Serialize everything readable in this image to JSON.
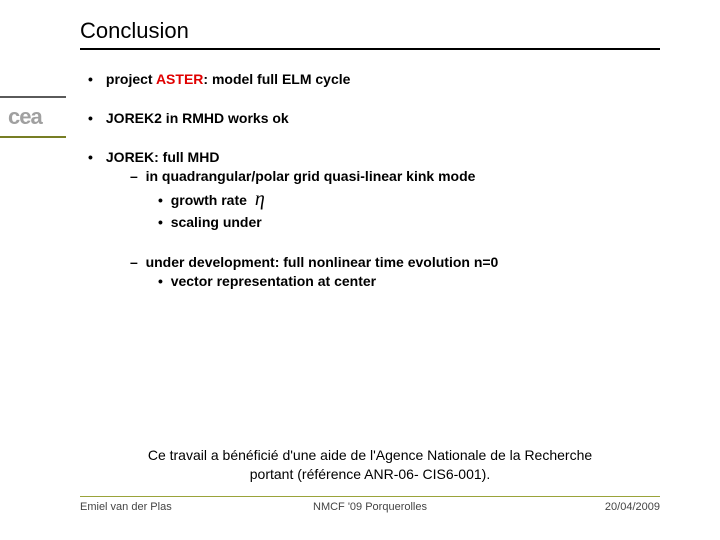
{
  "title": "Conclusion",
  "bullets": {
    "b1_pre": "project ",
    "b1_aster": "ASTER",
    "b1_post": ": model full ELM cycle",
    "b2": "JOREK2 in RMHD works ok",
    "b3": "JOREK: full MHD",
    "b3_1": "in quadrangular/polar grid quasi-linear kink mode",
    "b3_1_1": "growth rate",
    "b3_1_2": "scaling under",
    "b3_eta": "η",
    "b3_2": "under development: full nonlinear time evolution n=0",
    "b3_2_1": "vector representation at center"
  },
  "acknowledgement_l1": "Ce travail a bénéficié d'une aide de l'Agence Nationale de la Recherche",
  "acknowledgement_l2": "portant (référence ANR-06- CIS6-001).",
  "footer": {
    "author": "Emiel van der Plas",
    "conference": "NMCF '09 Porquerolles",
    "date": "20/04/2009"
  },
  "colors": {
    "title_underline": "#000000",
    "accent_green": "#9aa33a",
    "aster_red": "#e00000",
    "logo_gray": "#a0a0a0",
    "text": "#000000",
    "background": "#ffffff"
  },
  "logo_text": "cea"
}
